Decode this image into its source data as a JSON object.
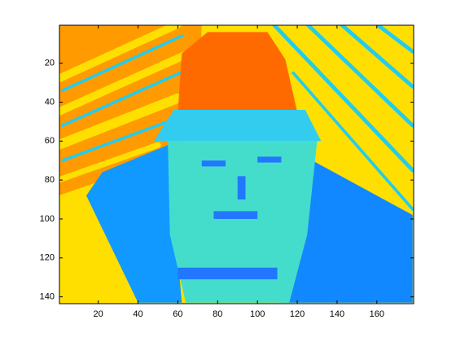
{
  "chart_data": {
    "type": "image",
    "xlim": [
      0.5,
      178.5
    ],
    "ylim": [
      0.5,
      143.5
    ],
    "xticks": [
      20,
      40,
      60,
      80,
      100,
      120,
      140,
      160
    ],
    "yticks": [
      20,
      40,
      60,
      80,
      100,
      120,
      140
    ],
    "y_reversed": true
  }
}
